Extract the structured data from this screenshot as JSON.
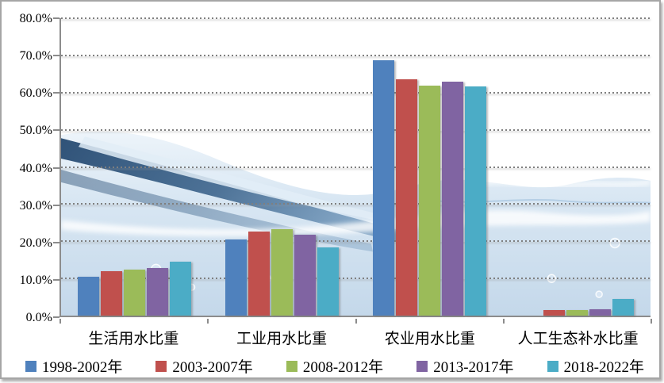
{
  "chart_data": {
    "type": "bar",
    "title": "",
    "xlabel": "",
    "ylabel": "",
    "categories": [
      "生活用水比重",
      "工业用水比重",
      "农业用水比重",
      "人工生态补水比重"
    ],
    "series": [
      {
        "name": "1998-2002年",
        "color": "#4F81BD",
        "values": [
          10.4,
          20.4,
          68.8,
          0.0
        ]
      },
      {
        "name": "2003-2007年",
        "color": "#C0504D",
        "values": [
          11.9,
          22.7,
          63.5,
          1.4
        ]
      },
      {
        "name": "2008-2012年",
        "color": "#9BBB59",
        "values": [
          12.4,
          23.2,
          61.9,
          1.5
        ]
      },
      {
        "name": "2013-2017年",
        "color": "#8064A2",
        "values": [
          12.9,
          21.7,
          63.0,
          1.8
        ]
      },
      {
        "name": "2018-2022年",
        "color": "#4BACC6",
        "values": [
          14.5,
          18.3,
          61.7,
          4.5
        ]
      }
    ],
    "ylim": [
      0,
      80
    ],
    "y_tick_step": 10,
    "y_tick_labels": [
      "0.0%",
      "10.0%",
      "20.0%",
      "30.0%",
      "40.0%",
      "50.0%",
      "60.0%",
      "70.0%",
      "80.0%"
    ],
    "grid": "horizontal-dotted",
    "legend_position": "bottom",
    "background": "water-splash-photo-watermark"
  },
  "colors": {
    "axis": "#8C8C8C",
    "gridline": "#7F7F7F",
    "frame_border": "#A6A6A6",
    "plot_background": "#FFFFFF"
  }
}
